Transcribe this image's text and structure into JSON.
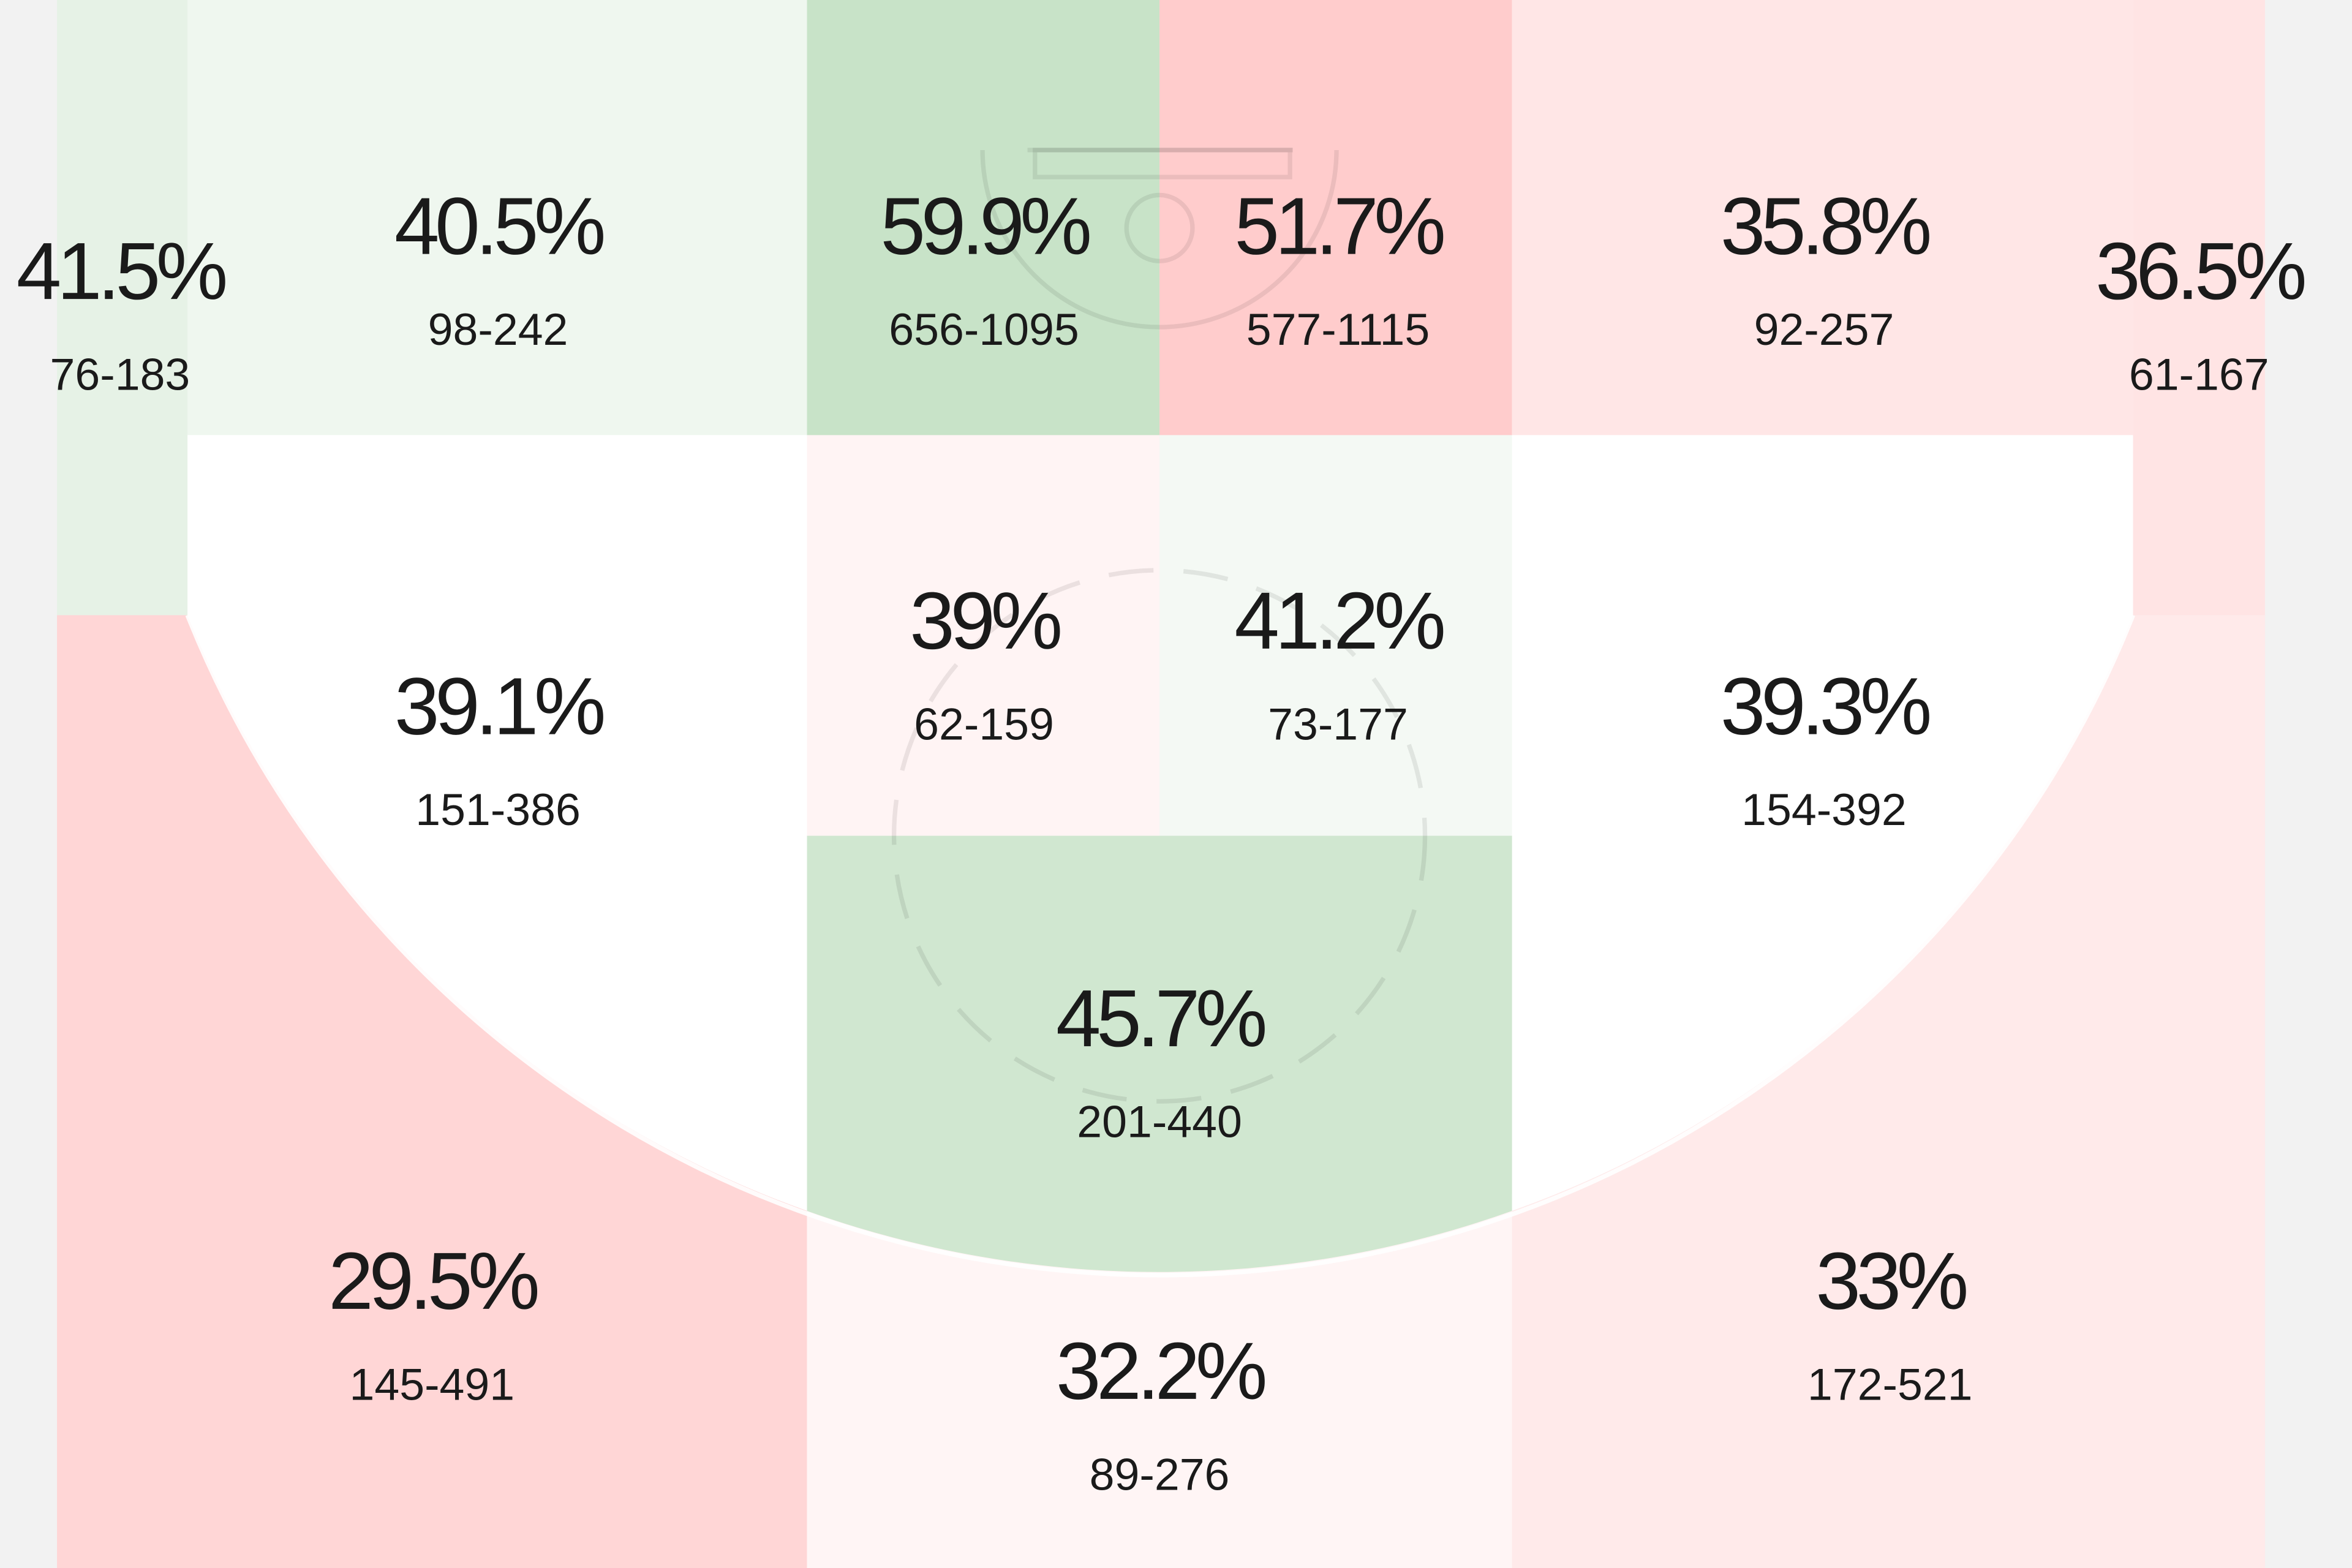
{
  "zones": [
    {
      "pct": "41.5%",
      "fga": "76-183",
      "color": "#e6f2e6"
    },
    {
      "pct": "40.5%",
      "fga": "98-242",
      "color": "#eff7ef"
    },
    {
      "pct": "59.9%",
      "fga": "656-1095",
      "color": "#c8e3c8"
    },
    {
      "pct": "51.7%",
      "fga": "577-1115",
      "color": "#ffcccc"
    },
    {
      "pct": "35.8%",
      "fga": "92-257",
      "color": "#ffe6e6"
    },
    {
      "pct": "36.5%",
      "fga": "61-167",
      "color": "#ffe4e4"
    },
    {
      "pct": "39.1%",
      "fga": "151-386",
      "color": "#ffffff"
    },
    {
      "pct": "39%",
      "fga": "62-159",
      "color": "#fff4f4"
    },
    {
      "pct": "41.2%",
      "fga": "73-177",
      "color": "#f4f9f4"
    },
    {
      "pct": "39.3%",
      "fga": "154-392",
      "color": "#ffffff"
    },
    {
      "pct": "45.7%",
      "fga": "201-440",
      "color": "#d0e7d0"
    },
    {
      "pct": "29.5%",
      "fga": "145-491",
      "color": "#ffd6d6"
    },
    {
      "pct": "32.2%",
      "fga": "89-276",
      "color": "#fff5f5"
    },
    {
      "pct": "33%",
      "fga": "172-521",
      "color": "#ffeaea"
    }
  ]
}
